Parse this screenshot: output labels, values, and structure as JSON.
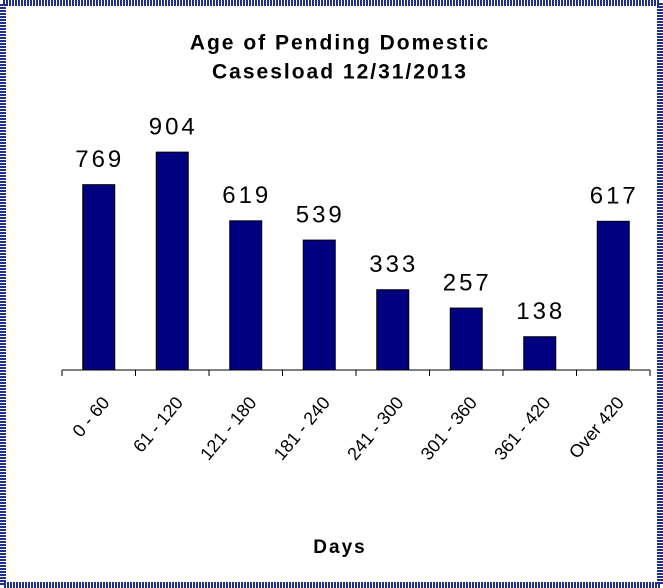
{
  "chart_data": {
    "type": "bar",
    "title": [
      "Age of Pending Domestic",
      "Casesload 12/31/2013"
    ],
    "x_label": "Days",
    "categories": [
      "0 - 60",
      "61 - 120",
      "121 - 180",
      "181 - 240",
      "241 - 300",
      "301 - 360",
      "361 - 420",
      "Over 420"
    ],
    "values": [
      769,
      904,
      619,
      539,
      333,
      257,
      138,
      617
    ],
    "color": "#000080",
    "ylim": [
      0,
      1000
    ]
  }
}
